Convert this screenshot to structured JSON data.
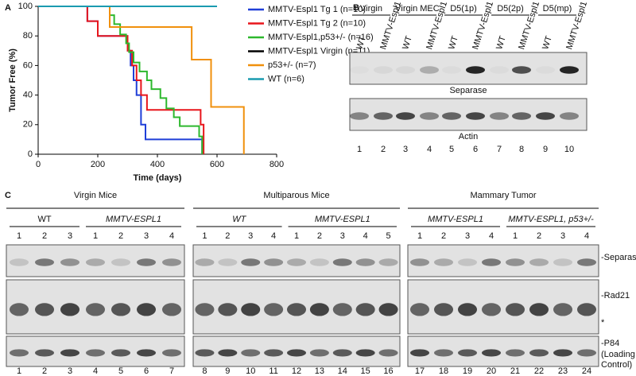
{
  "chart_data": {
    "type": "line",
    "step": true,
    "ylabel": "Tumor Free (%)",
    "xlabel": "Time (days)",
    "xlim": [
      0,
      800
    ],
    "ylim": [
      0,
      100
    ],
    "xticks": [
      0,
      200,
      400,
      600,
      800
    ],
    "yticks": [
      0,
      20,
      40,
      60,
      80,
      100
    ],
    "series": [
      {
        "name": "MMTV-Espl1 Tg 1 (n=10)",
        "color": "#1f3fd8",
        "x": [
          0,
          165,
          200,
          300,
          310,
          320,
          330,
          345,
          360,
          550
        ],
        "values": [
          100,
          90,
          80,
          70,
          60,
          50,
          40,
          20,
          10,
          0
        ]
      },
      {
        "name": "MMTV-Espl1 Tg 2 (n=10)",
        "color": "#e8151b",
        "x": [
          0,
          165,
          200,
          300,
          315,
          330,
          345,
          365,
          545,
          555
        ],
        "values": [
          100,
          90,
          80,
          70,
          60,
          50,
          40,
          30,
          20,
          0
        ]
      },
      {
        "name": "MMTV-Espl1,p53+/-  (n=16)",
        "color": "#2db82d",
        "x": [
          0,
          240,
          255,
          275,
          295,
          305,
          320,
          340,
          365,
          380,
          410,
          430,
          455,
          475,
          540,
          550
        ],
        "values": [
          100,
          94,
          88,
          81,
          75,
          69,
          62,
          56,
          50,
          44,
          38,
          31,
          25,
          19,
          12,
          0
        ]
      },
      {
        "name": "MMTV-Espl1 Virgin (n=11)",
        "color": "#000000",
        "x": [
          0,
          600
        ],
        "values": [
          100,
          100
        ]
      },
      {
        "name": "p53+/- (n=7)",
        "color": "#f0900c",
        "x": [
          0,
          240,
          515,
          580,
          690
        ],
        "values": [
          100,
          86,
          64,
          32,
          0
        ]
      },
      {
        "name": "WT (n=6)",
        "color": "#1a9bb0",
        "x": [
          0,
          600
        ],
        "values": [
          100,
          100
        ]
      }
    ]
  },
  "panels": [
    "A",
    "B",
    "C"
  ],
  "blot_b": {
    "groups": [
      "Virgin",
      "Virgin MEC",
      "D5(1p)",
      "D5(2p)",
      "D5(mp)"
    ],
    "lane_labels": [
      "WT",
      "MMTV-Espl1",
      "WT",
      "MMTV-Espl1",
      "WT",
      "MMTV-Espl1",
      "WT",
      "MMTV-Espl1",
      "WT",
      "MMTV-Espl1"
    ],
    "rows": [
      "Separase",
      "Actin"
    ],
    "lanes": [
      1,
      2,
      3,
      4,
      5,
      6,
      7,
      8,
      9,
      10
    ]
  },
  "blot_c": {
    "groups": [
      "Virgin Mice",
      "Multiparous Mice",
      "Mammary Tumor"
    ],
    "subgroups": [
      "WT",
      "MMTV-ESPL1",
      "WT",
      "MMTV-ESPL1",
      "MMTV-ESPL1",
      "MMTV-ESPL1, p53+/-"
    ],
    "sub_lanes": [
      [
        1,
        2,
        3
      ],
      [
        1,
        2,
        3,
        4
      ],
      [
        1,
        2,
        3,
        4
      ],
      [
        1,
        2,
        3,
        4,
        5
      ],
      [
        1,
        2,
        3,
        4
      ],
      [
        1,
        2,
        3,
        4
      ]
    ],
    "lanes": [
      1,
      2,
      3,
      4,
      5,
      6,
      7,
      8,
      9,
      10,
      11,
      12,
      13,
      14,
      15,
      16,
      17,
      18,
      19,
      20,
      21,
      22,
      23,
      24
    ],
    "rows": [
      "-Separase",
      "-Rad21",
      "*",
      "-P84",
      "(Loading",
      "Control)"
    ]
  }
}
